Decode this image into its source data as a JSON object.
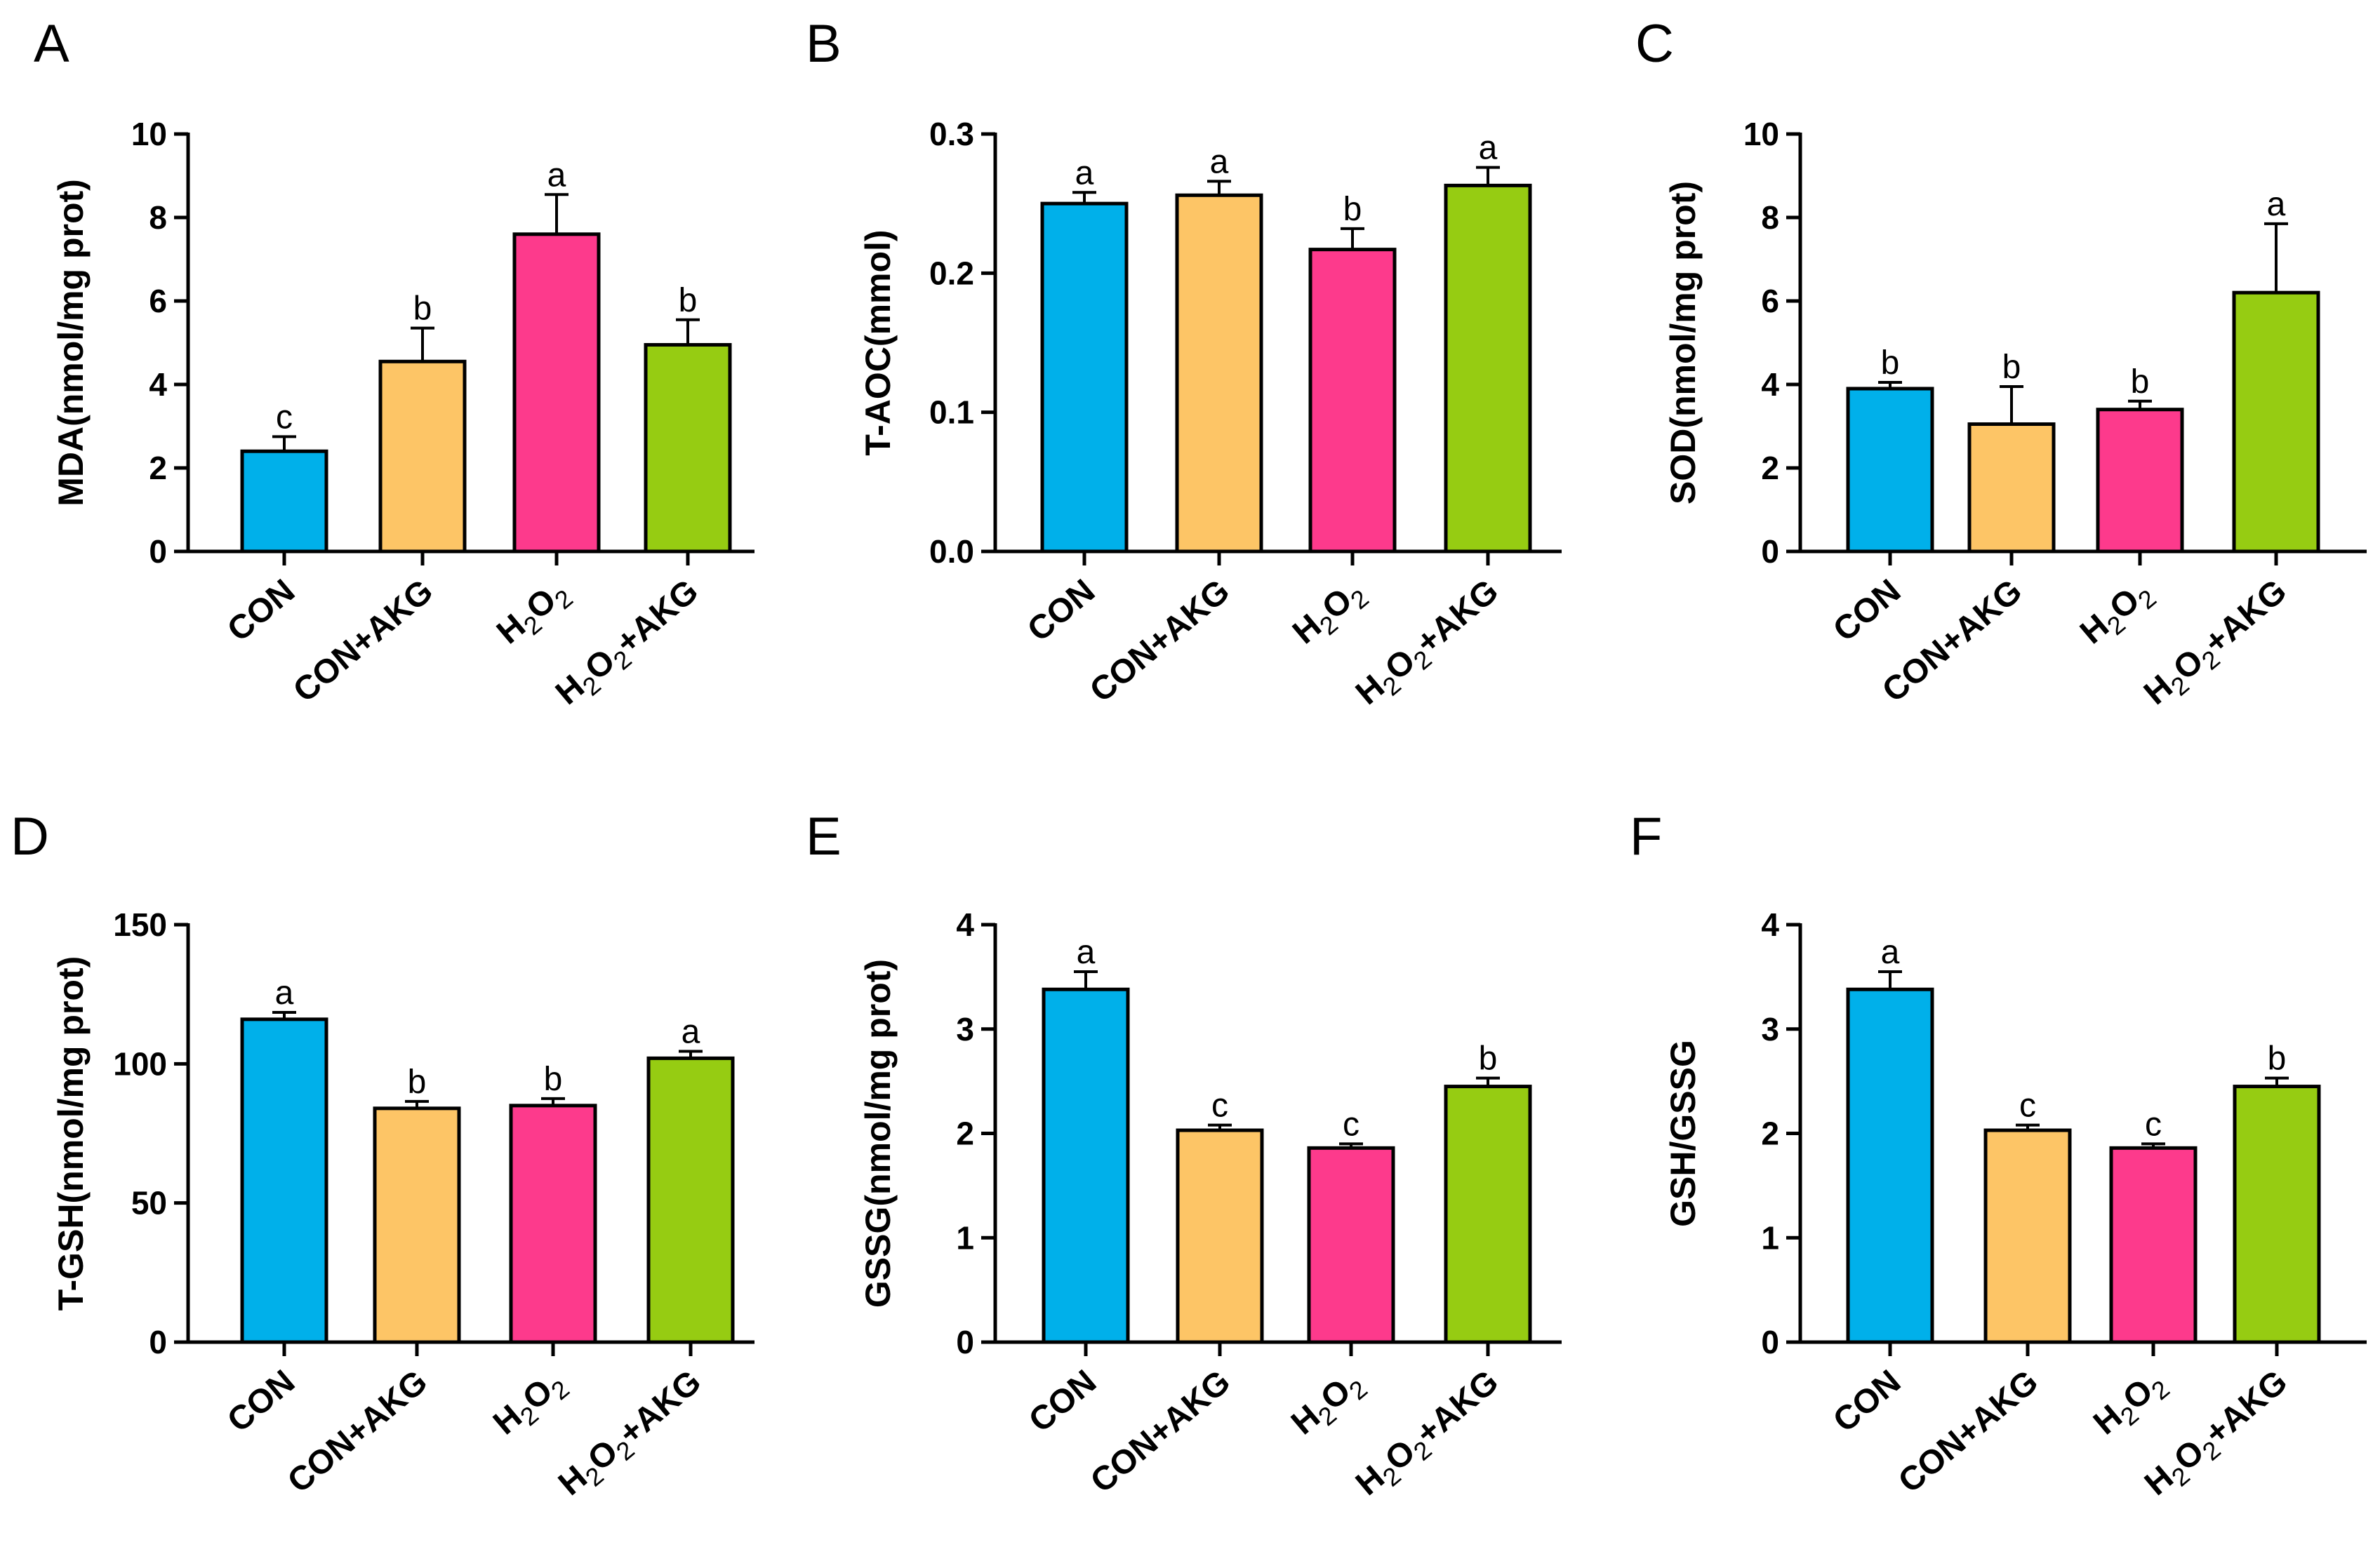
{
  "figure": {
    "groups": [
      "CON",
      "CON+AKG",
      "H2O2",
      "H2O2+AKG"
    ],
    "group_labels": [
      {
        "parts": [
          {
            "t": "CON"
          }
        ]
      },
      {
        "parts": [
          {
            "t": "CON+AKG"
          }
        ]
      },
      {
        "parts": [
          {
            "t": "H"
          },
          {
            "t": "2",
            "sub": true
          },
          {
            "t": "O"
          },
          {
            "t": "2",
            "sub": true
          }
        ]
      },
      {
        "parts": [
          {
            "t": "H"
          },
          {
            "t": "2",
            "sub": true
          },
          {
            "t": "O"
          },
          {
            "t": "2",
            "sub": true
          },
          {
            "t": "+AKG"
          }
        ]
      }
    ],
    "colors": [
      "#00b0ea",
      "#fdc566",
      "#fd3a8c",
      "#96cc12"
    ]
  },
  "chart_data": [
    {
      "panel": "A",
      "type": "bar",
      "categories": [
        "CON",
        "CON+AKG",
        "H2O2",
        "H2O2+AKG"
      ],
      "values": [
        2.4,
        4.55,
        7.6,
        4.95
      ],
      "errors": [
        0.35,
        0.8,
        0.95,
        0.6
      ],
      "significance": [
        "c",
        "b",
        "a",
        "b"
      ],
      "ylabel": "MDA(nmol/mg prot)",
      "ylim": [
        0,
        10
      ],
      "yticks": [
        0,
        2,
        4,
        6,
        8,
        10
      ],
      "ytick_labels": [
        "0",
        "2",
        "4",
        "6",
        "8",
        "10"
      ]
    },
    {
      "panel": "B",
      "type": "bar",
      "categories": [
        "CON",
        "CON+AKG",
        "H2O2",
        "H2O2+AKG"
      ],
      "values": [
        0.25,
        0.256,
        0.217,
        0.263
      ],
      "errors": [
        0.008,
        0.01,
        0.015,
        0.013
      ],
      "significance": [
        "a",
        "a",
        "b",
        "a"
      ],
      "ylabel": "T-AOC(mmol)",
      "ylim": [
        0,
        0.3
      ],
      "yticks": [
        0,
        0.1,
        0.2,
        0.3
      ],
      "ytick_labels": [
        "0.0",
        "0.1",
        "0.2",
        "0.3"
      ]
    },
    {
      "panel": "C",
      "type": "bar",
      "categories": [
        "CON",
        "CON+AKG",
        "H2O2",
        "H2O2+AKG"
      ],
      "values": [
        3.9,
        3.05,
        3.4,
        6.2
      ],
      "errors": [
        0.15,
        0.9,
        0.2,
        1.65
      ],
      "significance": [
        "b",
        "b",
        "b",
        "a"
      ],
      "ylabel": "SOD(nmol/mg prot)",
      "ylim": [
        0,
        10
      ],
      "yticks": [
        0,
        2,
        4,
        6,
        8,
        10
      ],
      "ytick_labels": [
        "0",
        "2",
        "4",
        "6",
        "8",
        "10"
      ]
    },
    {
      "panel": "D",
      "type": "bar",
      "categories": [
        "CON",
        "CON+AKG",
        "H2O2",
        "H2O2+AKG"
      ],
      "values": [
        116,
        84,
        85,
        102
      ],
      "errors": [
        2.5,
        2.5,
        2.5,
        2.5
      ],
      "significance": [
        "a",
        "b",
        "b",
        "a"
      ],
      "ylabel": "T-GSH(nmol/mg prot)",
      "ylim": [
        0,
        150
      ],
      "yticks": [
        0,
        50,
        100,
        150
      ],
      "ytick_labels": [
        "0",
        "50",
        "100",
        "150"
      ]
    },
    {
      "panel": "E",
      "type": "bar",
      "categories": [
        "CON",
        "CON+AKG",
        "H2O2",
        "H2O2+AKG"
      ],
      "values": [
        3.38,
        2.03,
        1.86,
        2.45
      ],
      "errors": [
        0.17,
        0.05,
        0.04,
        0.08
      ],
      "significance": [
        "a",
        "c",
        "c",
        "b"
      ],
      "ylabel": "GSSG(nmol/mg prot)",
      "ylim": [
        0,
        4
      ],
      "yticks": [
        0,
        1,
        2,
        3,
        4
      ],
      "ytick_labels": [
        "0",
        "1",
        "2",
        "3",
        "4"
      ]
    },
    {
      "panel": "F",
      "type": "bar",
      "categories": [
        "CON",
        "CON+AKG",
        "H2O2",
        "H2O2+AKG"
      ],
      "values": [
        3.38,
        2.03,
        1.86,
        2.45
      ],
      "errors": [
        0.17,
        0.05,
        0.04,
        0.08
      ],
      "significance": [
        "a",
        "c",
        "c",
        "b"
      ],
      "ylabel": "GSH/GSSG",
      "ylim": [
        0,
        4
      ],
      "yticks": [
        0,
        1,
        2,
        3,
        4
      ],
      "ytick_labels": [
        "0",
        "1",
        "2",
        "3",
        "4"
      ]
    }
  ]
}
